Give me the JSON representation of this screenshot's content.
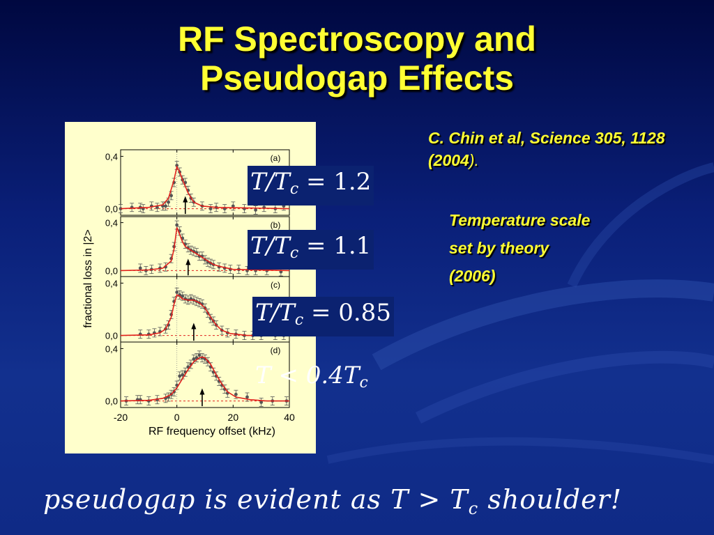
{
  "slide": {
    "title_line1": "RF Spectroscopy and",
    "title_line2": "Pseudogap Effects",
    "citation_prefix": "C. Chin et al, Science 305, 1128 (2004",
    "citation_suffix": ").",
    "note_line1": "Temperature scale",
    "note_line2": "set by theory",
    "note_line3": "(2006)",
    "bottom_pre": "pseudogap is evident as T > T",
    "bottom_sub": "c",
    "bottom_post": " shoulder!"
  },
  "temperature_labels": [
    {
      "lhs": "T/T",
      "sub": "c",
      "rhs": " = 1.2"
    },
    {
      "lhs": "T/T",
      "sub": "c",
      "rhs": " = 1.1"
    },
    {
      "lhs": "T/T",
      "sub": "c",
      "rhs": " = 0.85"
    },
    {
      "lhs": "T < 0.4T",
      "sub": "c",
      "rhs": ""
    }
  ],
  "colors": {
    "title": "#ffff33",
    "fit_line": "#e0201c",
    "data_points": "#555555",
    "figure_bg": "#ffffcc"
  },
  "chart_data": {
    "type": "scatter",
    "xlabel": "RF frequency offset (kHz)",
    "ylabel": "fractional loss in |2>",
    "x_ticks": [
      "-20",
      "0",
      "20",
      "40"
    ],
    "xlim": [
      -20,
      40
    ],
    "ylim": [
      -0.05,
      0.45
    ],
    "y_ticks": [
      "0,0",
      "0,4"
    ],
    "panels": [
      {
        "label": "(a)",
        "arrow_x": 3,
        "points": [
          [
            -20,
            0.0
          ],
          [
            -16,
            0.01
          ],
          [
            -13,
            0.01
          ],
          [
            -12,
            0.0
          ],
          [
            -9,
            0.02
          ],
          [
            -7,
            0.01
          ],
          [
            -5,
            0.02
          ],
          [
            -4,
            0.02
          ],
          [
            -3,
            0.05
          ],
          [
            -2,
            0.1
          ],
          [
            -1,
            0.2
          ],
          [
            0,
            0.33
          ],
          [
            1,
            0.28
          ],
          [
            2,
            0.22
          ],
          [
            3,
            0.2
          ],
          [
            4,
            0.14
          ],
          [
            5,
            0.08
          ],
          [
            6,
            0.05
          ],
          [
            9,
            0.02
          ],
          [
            12,
            0.0
          ],
          [
            14,
            0.01
          ],
          [
            17,
            0.0
          ],
          [
            20,
            0.02
          ],
          [
            24,
            0.0
          ],
          [
            28,
            -0.01
          ],
          [
            31,
            0.01
          ],
          [
            35,
            0.0
          ],
          [
            38,
            0.02
          ]
        ],
        "fit": [
          [
            -20,
            0.0
          ],
          [
            -10,
            0.01
          ],
          [
            -5,
            0.03
          ],
          [
            -3,
            0.08
          ],
          [
            -1,
            0.22
          ],
          [
            0,
            0.32
          ],
          [
            1,
            0.28
          ],
          [
            2,
            0.22
          ],
          [
            3,
            0.17
          ],
          [
            4,
            0.12
          ],
          [
            6,
            0.05
          ],
          [
            9,
            0.02
          ],
          [
            14,
            0.01
          ],
          [
            40,
            0.0
          ]
        ]
      },
      {
        "label": "(b)",
        "arrow_x": 4,
        "points": [
          [
            -13,
            0.02
          ],
          [
            -11,
            0.0
          ],
          [
            -9,
            0.01
          ],
          [
            -6,
            0.02
          ],
          [
            -4,
            0.03
          ],
          [
            -2,
            0.1
          ],
          [
            -1,
            0.2
          ],
          [
            0,
            0.38
          ],
          [
            1,
            0.33
          ],
          [
            2,
            0.27
          ],
          [
            3,
            0.22
          ],
          [
            4,
            0.19
          ],
          [
            5,
            0.17
          ],
          [
            6,
            0.16
          ],
          [
            7,
            0.15
          ],
          [
            8,
            0.12
          ],
          [
            9,
            0.12
          ],
          [
            10,
            0.09
          ],
          [
            11,
            0.07
          ],
          [
            12,
            0.06
          ],
          [
            13,
            0.05
          ],
          [
            15,
            0.03
          ],
          [
            17,
            0.02
          ],
          [
            19,
            0.01
          ],
          [
            22,
            0.01
          ],
          [
            25,
            0.0
          ],
          [
            28,
            0.0
          ],
          [
            32,
            0.0
          ],
          [
            37,
            -0.01
          ]
        ],
        "fit": [
          [
            -20,
            0.0
          ],
          [
            -10,
            0.005
          ],
          [
            -5,
            0.02
          ],
          [
            -2,
            0.08
          ],
          [
            -1,
            0.18
          ],
          [
            0,
            0.36
          ],
          [
            1,
            0.3
          ],
          [
            2,
            0.24
          ],
          [
            3,
            0.2
          ],
          [
            5,
            0.17
          ],
          [
            7,
            0.14
          ],
          [
            9,
            0.11
          ],
          [
            11,
            0.08
          ],
          [
            13,
            0.05
          ],
          [
            16,
            0.03
          ],
          [
            20,
            0.01
          ],
          [
            40,
            0.0
          ]
        ]
      },
      {
        "label": "(c)",
        "arrow_x": 6,
        "points": [
          [
            -13,
            0.01
          ],
          [
            -10,
            0.01
          ],
          [
            -8,
            0.02
          ],
          [
            -6,
            0.03
          ],
          [
            -4,
            0.05
          ],
          [
            -3,
            0.08
          ],
          [
            -2,
            0.16
          ],
          [
            -1,
            0.26
          ],
          [
            0,
            0.33
          ],
          [
            1,
            0.31
          ],
          [
            2,
            0.3
          ],
          [
            3,
            0.28
          ],
          [
            4,
            0.27
          ],
          [
            5,
            0.28
          ],
          [
            6,
            0.27
          ],
          [
            7,
            0.26
          ],
          [
            8,
            0.25
          ],
          [
            9,
            0.24
          ],
          [
            10,
            0.21
          ],
          [
            11,
            0.17
          ],
          [
            12,
            0.13
          ],
          [
            13,
            0.11
          ],
          [
            14,
            0.08
          ],
          [
            16,
            0.04
          ],
          [
            18,
            0.02
          ],
          [
            21,
            0.01
          ],
          [
            24,
            0.0
          ],
          [
            27,
            0.0
          ],
          [
            30,
            0.0
          ],
          [
            35,
            0.0
          ],
          [
            38,
            0.0
          ]
        ],
        "fit": [
          [
            -20,
            0.0
          ],
          [
            -10,
            0.005
          ],
          [
            -6,
            0.02
          ],
          [
            -4,
            0.05
          ],
          [
            -2,
            0.14
          ],
          [
            -1,
            0.24
          ],
          [
            0,
            0.31
          ],
          [
            1,
            0.3
          ],
          [
            2,
            0.28
          ],
          [
            4,
            0.27
          ],
          [
            6,
            0.27
          ],
          [
            8,
            0.25
          ],
          [
            10,
            0.21
          ],
          [
            12,
            0.14
          ],
          [
            14,
            0.08
          ],
          [
            16,
            0.04
          ],
          [
            19,
            0.015
          ],
          [
            25,
            0.0
          ],
          [
            40,
            0.0
          ]
        ]
      },
      {
        "label": "(d)",
        "arrow_x": 9,
        "points": [
          [
            -18,
            0.0
          ],
          [
            -14,
            0.01
          ],
          [
            -13,
            0.01
          ],
          [
            -10,
            0.0
          ],
          [
            -7,
            0.01
          ],
          [
            -4,
            0.02
          ],
          [
            -3,
            0.03
          ],
          [
            -2,
            0.05
          ],
          [
            -1,
            0.07
          ],
          [
            0,
            0.12
          ],
          [
            1,
            0.19
          ],
          [
            2,
            0.2
          ],
          [
            3,
            0.22
          ],
          [
            4,
            0.26
          ],
          [
            5,
            0.28
          ],
          [
            6,
            0.32
          ],
          [
            7,
            0.33
          ],
          [
            8,
            0.35
          ],
          [
            9,
            0.33
          ],
          [
            10,
            0.32
          ],
          [
            11,
            0.3
          ],
          [
            12,
            0.26
          ],
          [
            13,
            0.22
          ],
          [
            14,
            0.19
          ],
          [
            15,
            0.15
          ],
          [
            16,
            0.12
          ],
          [
            17,
            0.09
          ],
          [
            18,
            0.06
          ],
          [
            21,
            0.05
          ],
          [
            25,
            0.03
          ],
          [
            30,
            -0.01
          ],
          [
            34,
            0.0
          ],
          [
            39,
            0.0
          ]
        ],
        "fit": [
          [
            -20,
            0.0
          ],
          [
            -10,
            0.005
          ],
          [
            -5,
            0.02
          ],
          [
            -2,
            0.05
          ],
          [
            0,
            0.1
          ],
          [
            2,
            0.17
          ],
          [
            4,
            0.24
          ],
          [
            6,
            0.3
          ],
          [
            8,
            0.33
          ],
          [
            9,
            0.335
          ],
          [
            10,
            0.33
          ],
          [
            12,
            0.28
          ],
          [
            14,
            0.2
          ],
          [
            16,
            0.13
          ],
          [
            18,
            0.07
          ],
          [
            21,
            0.03
          ],
          [
            26,
            0.01
          ],
          [
            32,
            0.0
          ],
          [
            40,
            0.0
          ]
        ]
      }
    ]
  }
}
